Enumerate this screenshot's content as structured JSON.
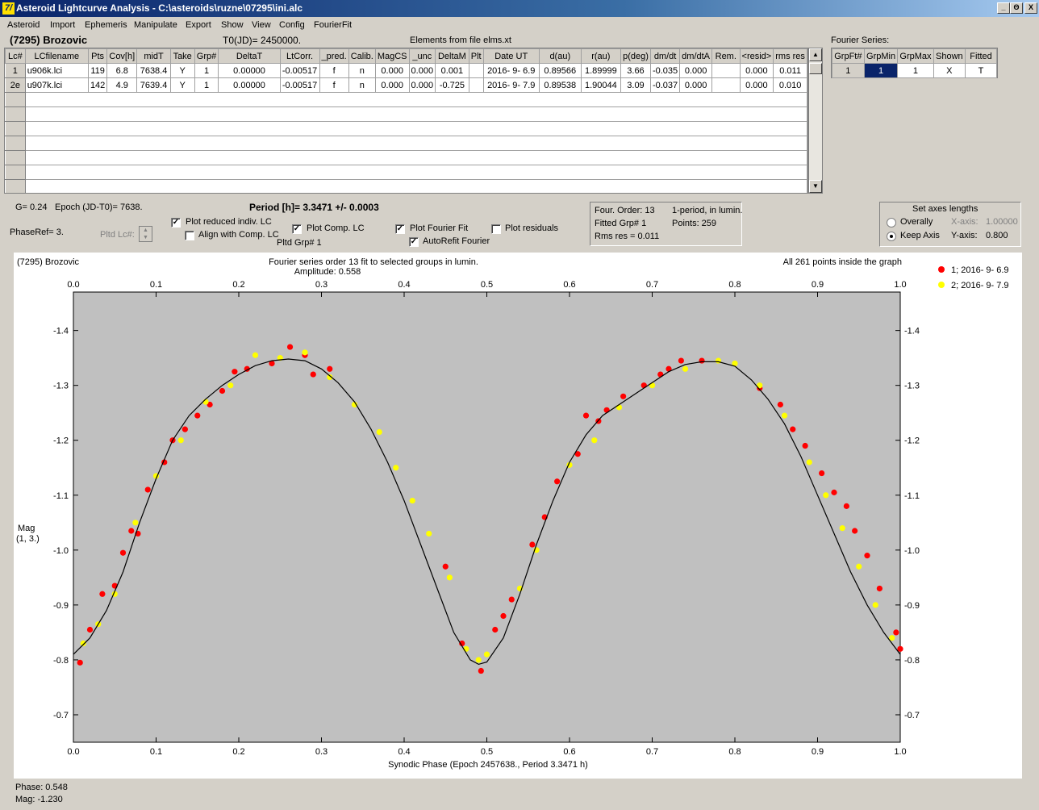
{
  "window": {
    "title": "Asteroid Lightcurve Analysis - C:\\asteroids\\ruzne\\07295\\ini.alc",
    "minimize": "_",
    "restore": "Θ",
    "close": "X"
  },
  "menu": [
    "Asteroid",
    "Import",
    "Ephemeris",
    "Manipulate",
    "Export",
    "Show",
    "View",
    "Config",
    "FourierFit"
  ],
  "header": {
    "asteroid_name": "(7295) Brozovic",
    "t0": "T0(JD)= 2450000.",
    "elements": "Elements from file elms.xt"
  },
  "lc_table": {
    "columns": [
      "Lc#",
      "LCfilename",
      "Pts",
      "Cov[h]",
      "midT",
      "Take",
      "Grp#",
      "DeltaT",
      "LtCorr.",
      "_pred.",
      "Calib.",
      "MagCS",
      "_unc",
      "DeltaM",
      "Plt",
      "Date UT",
      "d(au)",
      "r(au)",
      "p(deg)",
      "dm/dt",
      "dm/dtA",
      "Rem.",
      "<resid>",
      "rms res"
    ],
    "rows": [
      [
        "1",
        "u906k.lci",
        "119",
        "6.8",
        "7638.4",
        "Y",
        "1",
        "0.00000",
        "-0.00517",
        "f",
        "n",
        "0.000",
        "0.000",
        "0.001",
        "",
        "2016- 9- 6.9",
        "0.89566",
        "1.89999",
        "3.66",
        "-0.035",
        "0.000",
        "",
        "0.000",
        "0.011"
      ],
      [
        "2e",
        "u907k.lci",
        "142",
        "4.9",
        "7639.4",
        "Y",
        "1",
        "0.00000",
        "-0.00517",
        "f",
        "n",
        "0.000",
        "0.000",
        "-0.725",
        "",
        "2016- 9- 7.9",
        "0.89538",
        "1.90044",
        "3.09",
        "-0.037",
        "0.000",
        "",
        "0.000",
        "0.010"
      ]
    ]
  },
  "fourier_series": {
    "label": "Fourier Series:",
    "columns": [
      "GrpFt#",
      "GrpMin",
      "GrpMax",
      "Shown",
      "Fitted"
    ],
    "row": [
      "1",
      "1",
      "1",
      "X",
      "T"
    ]
  },
  "controls": {
    "g_param": "G= 0.24",
    "epoch": "Epoch (JD-T0)= 7638.",
    "period": "Period [h]= 3.3471 +/- 0.0003",
    "phase_ref": "PhaseRef= 3.",
    "pltd_lc": "Pltd Lc#:",
    "plot_reduced": "Plot reduced indiv. LC",
    "align_comp": "Align with Comp. LC",
    "plot_comp": "Plot Comp. LC",
    "pltd_grp": "Pltd Grp#  1",
    "plot_fourier": "Plot Fourier Fit",
    "autorefit": "AutoRefit Fourier",
    "plot_residuals": "Plot residuals"
  },
  "fit_info": {
    "order": "Four. Order: 13",
    "period_mode": "1-period, in lumin.",
    "fitted_grp": "Fitted Grp# 1",
    "points": "Points: 259",
    "rms": "Rms res     = 0.011"
  },
  "axes_box": {
    "title": "Set axes lengths",
    "overally": "Overally",
    "keep_axis": "Keep Axis",
    "x_axis_label": "X-axis:",
    "x_axis_value": "1.00000",
    "y_axis_label": "Y-axis:",
    "y_axis_value": "0.800"
  },
  "status": {
    "phase": "Phase:  0.548",
    "mag": "Mag:    -1.230"
  },
  "chart_data": {
    "type": "scatter",
    "corner_label": "(7295) Brozovic",
    "title": "Fourier series order 13 fit to selected groups in lumin.",
    "subtitle": "Amplitude: 0.558",
    "points_note": "All 261 points inside the graph",
    "xlabel": "Synodic Phase (Epoch 2457638., Period 3.3471 h)",
    "ylabel": "Mag",
    "ylabel2": "(1, 3.)",
    "xlim": [
      0,
      1
    ],
    "ylim": [
      -0.65,
      -1.47
    ],
    "xticks": [
      0.0,
      0.1,
      0.2,
      0.3,
      0.4,
      0.5,
      0.6,
      0.7,
      0.8,
      0.9,
      1.0
    ],
    "xtick_labels": [
      "0.0",
      "0.1",
      "0.2",
      "0.3",
      "0.4",
      "0.5",
      "0.6",
      "0.7",
      "0.8",
      "0.9",
      "1.0"
    ],
    "yticks": [
      -1.4,
      -1.3,
      -1.2,
      -1.1,
      -1.0,
      -0.9,
      -0.8,
      -0.7
    ],
    "ytick_labels": [
      "-1.4",
      "-1.3",
      "-1.2",
      "-1.1",
      "-1.0",
      "-0.9",
      "-0.8",
      "-0.7"
    ],
    "colors": {
      "plot_bg": "#c0c0c0",
      "series1": "#ff0000",
      "series2": "#ffff00",
      "fit": "#000000"
    },
    "fit_curve": [
      [
        0.0,
        -0.81
      ],
      [
        0.02,
        -0.84
      ],
      [
        0.04,
        -0.89
      ],
      [
        0.06,
        -0.96
      ],
      [
        0.08,
        -1.05
      ],
      [
        0.1,
        -1.13
      ],
      [
        0.12,
        -1.2
      ],
      [
        0.14,
        -1.245
      ],
      [
        0.16,
        -1.275
      ],
      [
        0.18,
        -1.3
      ],
      [
        0.2,
        -1.32
      ],
      [
        0.22,
        -1.336
      ],
      [
        0.24,
        -1.345
      ],
      [
        0.26,
        -1.348
      ],
      [
        0.28,
        -1.345
      ],
      [
        0.3,
        -1.33
      ],
      [
        0.32,
        -1.305
      ],
      [
        0.34,
        -1.27
      ],
      [
        0.36,
        -1.22
      ],
      [
        0.38,
        -1.16
      ],
      [
        0.4,
        -1.09
      ],
      [
        0.42,
        -1.01
      ],
      [
        0.44,
        -0.93
      ],
      [
        0.46,
        -0.85
      ],
      [
        0.48,
        -0.8
      ],
      [
        0.49,
        -0.792
      ],
      [
        0.5,
        -0.796
      ],
      [
        0.52,
        -0.84
      ],
      [
        0.54,
        -0.92
      ],
      [
        0.56,
        -1.01
      ],
      [
        0.58,
        -1.09
      ],
      [
        0.6,
        -1.16
      ],
      [
        0.62,
        -1.21
      ],
      [
        0.64,
        -1.245
      ],
      [
        0.66,
        -1.265
      ],
      [
        0.68,
        -1.285
      ],
      [
        0.7,
        -1.305
      ],
      [
        0.72,
        -1.325
      ],
      [
        0.74,
        -1.338
      ],
      [
        0.76,
        -1.343
      ],
      [
        0.78,
        -1.343
      ],
      [
        0.8,
        -1.335
      ],
      [
        0.82,
        -1.31
      ],
      [
        0.84,
        -1.275
      ],
      [
        0.86,
        -1.23
      ],
      [
        0.88,
        -1.17
      ],
      [
        0.9,
        -1.1
      ],
      [
        0.92,
        -1.03
      ],
      [
        0.94,
        -0.96
      ],
      [
        0.96,
        -0.9
      ],
      [
        0.98,
        -0.85
      ],
      [
        1.0,
        -0.81
      ]
    ],
    "series": [
      {
        "name": "1; 2016- 9- 6.9",
        "points": [
          [
            0.008,
            -0.795
          ],
          [
            0.02,
            -0.855
          ],
          [
            0.035,
            -0.92
          ],
          [
            0.05,
            -0.935
          ],
          [
            0.06,
            -0.995
          ],
          [
            0.07,
            -1.035
          ],
          [
            0.078,
            -1.03
          ],
          [
            0.09,
            -1.11
          ],
          [
            0.11,
            -1.16
          ],
          [
            0.12,
            -1.2
          ],
          [
            0.135,
            -1.22
          ],
          [
            0.15,
            -1.245
          ],
          [
            0.165,
            -1.265
          ],
          [
            0.18,
            -1.29
          ],
          [
            0.195,
            -1.325
          ],
          [
            0.21,
            -1.33
          ],
          [
            0.24,
            -1.34
          ],
          [
            0.262,
            -1.37
          ],
          [
            0.28,
            -1.355
          ],
          [
            0.29,
            -1.32
          ],
          [
            0.31,
            -1.33
          ],
          [
            0.45,
            -0.97
          ],
          [
            0.47,
            -0.83
          ],
          [
            0.493,
            -0.78
          ],
          [
            0.51,
            -0.855
          ],
          [
            0.52,
            -0.88
          ],
          [
            0.53,
            -0.91
          ],
          [
            0.555,
            -1.01
          ],
          [
            0.57,
            -1.06
          ],
          [
            0.585,
            -1.125
          ],
          [
            0.61,
            -1.175
          ],
          [
            0.62,
            -1.245
          ],
          [
            0.635,
            -1.235
          ],
          [
            0.645,
            -1.255
          ],
          [
            0.665,
            -1.28
          ],
          [
            0.69,
            -1.3
          ],
          [
            0.71,
            -1.32
          ],
          [
            0.72,
            -1.33
          ],
          [
            0.735,
            -1.345
          ],
          [
            0.76,
            -1.345
          ],
          [
            0.83,
            -1.295
          ],
          [
            0.855,
            -1.265
          ],
          [
            0.87,
            -1.22
          ],
          [
            0.885,
            -1.19
          ],
          [
            0.905,
            -1.14
          ],
          [
            0.92,
            -1.105
          ],
          [
            0.935,
            -1.08
          ],
          [
            0.945,
            -1.035
          ],
          [
            0.96,
            -0.99
          ],
          [
            0.975,
            -0.93
          ],
          [
            0.995,
            -0.85
          ],
          [
            1.0,
            -0.82
          ]
        ]
      },
      {
        "name": "2; 2016- 9- 7.9",
        "points": [
          [
            0.012,
            -0.83
          ],
          [
            0.03,
            -0.865
          ],
          [
            0.05,
            -0.92
          ],
          [
            0.075,
            -1.05
          ],
          [
            0.1,
            -1.135
          ],
          [
            0.13,
            -1.2
          ],
          [
            0.16,
            -1.27
          ],
          [
            0.19,
            -1.3
          ],
          [
            0.22,
            -1.355
          ],
          [
            0.25,
            -1.35
          ],
          [
            0.28,
            -1.36
          ],
          [
            0.31,
            -1.315
          ],
          [
            0.34,
            -1.265
          ],
          [
            0.37,
            -1.215
          ],
          [
            0.39,
            -1.15
          ],
          [
            0.41,
            -1.09
          ],
          [
            0.43,
            -1.03
          ],
          [
            0.455,
            -0.95
          ],
          [
            0.475,
            -0.82
          ],
          [
            0.49,
            -0.8
          ],
          [
            0.5,
            -0.81
          ],
          [
            0.54,
            -0.93
          ],
          [
            0.56,
            -1.0
          ],
          [
            0.6,
            -1.155
          ],
          [
            0.63,
            -1.2
          ],
          [
            0.66,
            -1.26
          ],
          [
            0.7,
            -1.3
          ],
          [
            0.74,
            -1.33
          ],
          [
            0.78,
            -1.345
          ],
          [
            0.8,
            -1.34
          ],
          [
            0.83,
            -1.3
          ],
          [
            0.86,
            -1.245
          ],
          [
            0.89,
            -1.16
          ],
          [
            0.91,
            -1.1
          ],
          [
            0.93,
            -1.04
          ],
          [
            0.95,
            -0.97
          ],
          [
            0.97,
            -0.9
          ],
          [
            0.99,
            -0.84
          ]
        ]
      }
    ]
  }
}
